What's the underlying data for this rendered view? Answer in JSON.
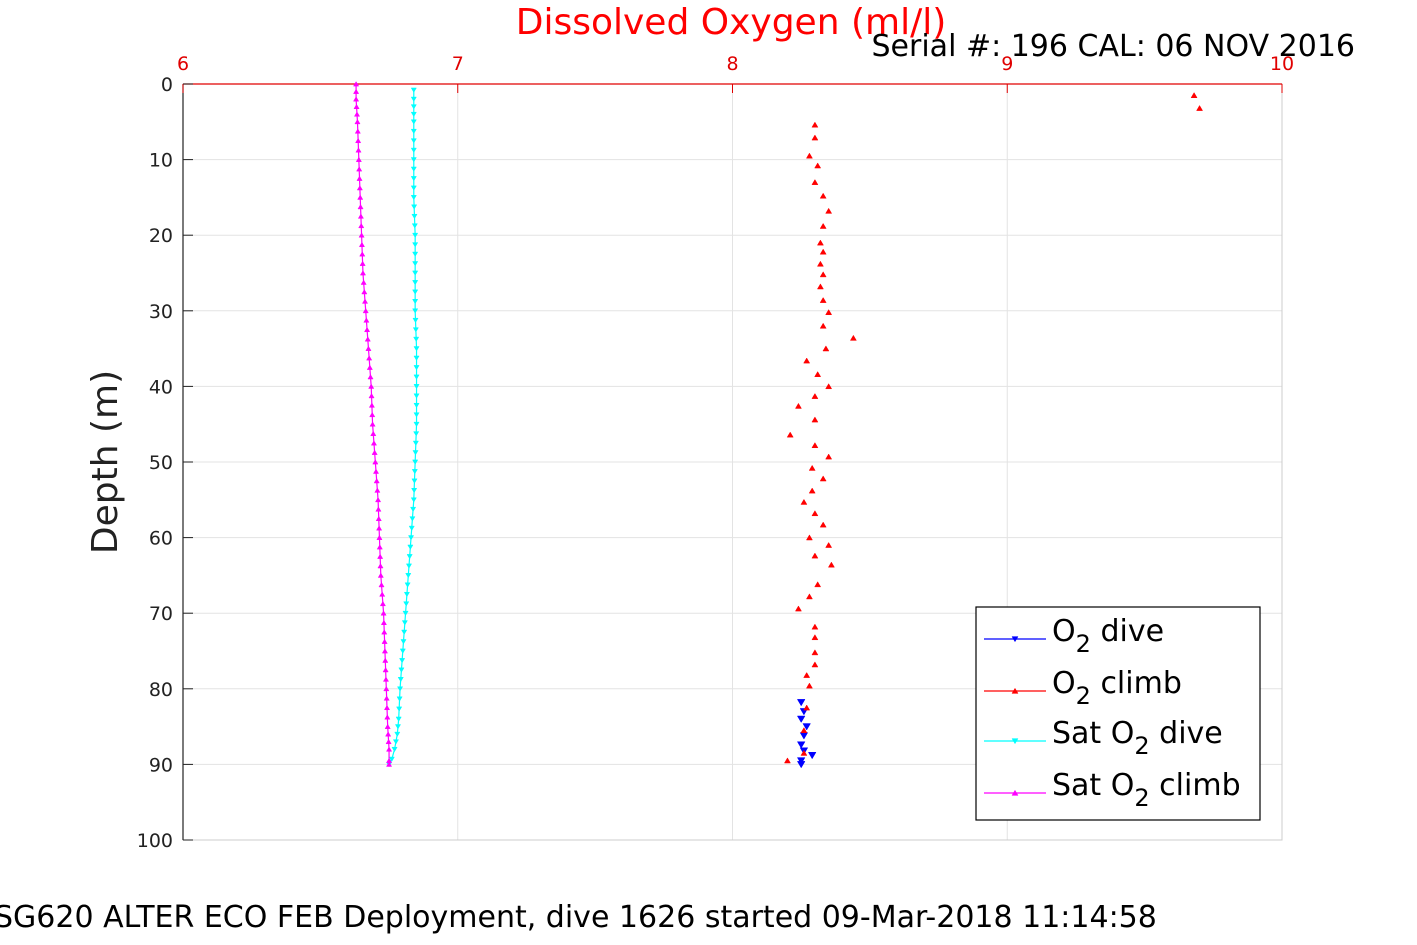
{
  "chart_data": {
    "type": "scatter",
    "title": "Dissolved Oxygen (ml/l)",
    "subtitle": "Serial #: 196  CAL: 06 NOV 2016",
    "caption": "SG620 ALTER ECO FEB Deployment, dive 1626 started 09-Mar-2018 11:14:58",
    "xlabel": "",
    "ylabel": "Depth (m)",
    "xlim": [
      6,
      10
    ],
    "ylim": [
      0,
      100
    ],
    "y_reversed": true,
    "x_axis_position": "top",
    "xticks": [
      "6",
      "7",
      "8",
      "9",
      "10"
    ],
    "yticks": [
      "0",
      "10",
      "20",
      "30",
      "40",
      "50",
      "60",
      "70",
      "80",
      "90",
      "100"
    ],
    "grid": true,
    "legend_position": "bottom-right",
    "legend": [
      {
        "base": "O",
        "sub": "2",
        "rest": " dive",
        "prefix": "",
        "color": "#0000ff",
        "marker": "tri-down"
      },
      {
        "base": "O",
        "sub": "2",
        "rest": " climb",
        "prefix": "",
        "color": "#ff0000",
        "marker": "tri-up"
      },
      {
        "prefix": "Sat ",
        "base": "O",
        "sub": "2",
        "rest": " dive",
        "color": "#00ffff",
        "marker": "tri-down"
      },
      {
        "prefix": "Sat ",
        "base": "O",
        "sub": "2",
        "rest": " climb",
        "color": "#ff00ff",
        "marker": "tri-up"
      }
    ],
    "series": [
      {
        "name": "O2 dive",
        "color": "#0000ff",
        "marker": "tri-down",
        "line": false,
        "points": [
          [
            8.25,
            81.8
          ],
          [
            8.26,
            83.0
          ],
          [
            8.25,
            84.0
          ],
          [
            8.27,
            85.0
          ],
          [
            8.26,
            86.2
          ],
          [
            8.25,
            87.4
          ],
          [
            8.26,
            88.2
          ],
          [
            8.29,
            88.8
          ],
          [
            8.25,
            89.5
          ],
          [
            8.25,
            90.0
          ]
        ]
      },
      {
        "name": "O2 climb",
        "color": "#ff0000",
        "marker": "tri-up",
        "line": false,
        "points": [
          [
            9.68,
            1.5
          ],
          [
            9.7,
            3.2
          ],
          [
            8.3,
            5.4
          ],
          [
            8.3,
            7.1
          ],
          [
            8.28,
            9.5
          ],
          [
            8.31,
            10.8
          ],
          [
            8.3,
            13.0
          ],
          [
            8.33,
            14.8
          ],
          [
            8.35,
            16.8
          ],
          [
            8.33,
            18.8
          ],
          [
            8.32,
            21.0
          ],
          [
            8.33,
            22.2
          ],
          [
            8.32,
            23.8
          ],
          [
            8.33,
            25.2
          ],
          [
            8.32,
            26.8
          ],
          [
            8.33,
            28.6
          ],
          [
            8.35,
            30.2
          ],
          [
            8.33,
            32.0
          ],
          [
            8.44,
            33.6
          ],
          [
            8.34,
            35.0
          ],
          [
            8.27,
            36.6
          ],
          [
            8.31,
            38.4
          ],
          [
            8.35,
            40.0
          ],
          [
            8.3,
            41.3
          ],
          [
            8.24,
            42.6
          ],
          [
            8.3,
            44.4
          ],
          [
            8.21,
            46.4
          ],
          [
            8.3,
            47.8
          ],
          [
            8.35,
            49.3
          ],
          [
            8.29,
            50.8
          ],
          [
            8.33,
            52.2
          ],
          [
            8.29,
            53.8
          ],
          [
            8.26,
            55.3
          ],
          [
            8.3,
            56.8
          ],
          [
            8.33,
            58.3
          ],
          [
            8.28,
            60.0
          ],
          [
            8.35,
            61.0
          ],
          [
            8.3,
            62.4
          ],
          [
            8.36,
            63.6
          ],
          [
            8.31,
            66.2
          ],
          [
            8.28,
            67.8
          ],
          [
            8.24,
            69.4
          ],
          [
            8.3,
            71.8
          ],
          [
            8.3,
            73.2
          ],
          [
            8.3,
            75.2
          ],
          [
            8.3,
            76.8
          ],
          [
            8.27,
            78.2
          ],
          [
            8.28,
            79.6
          ],
          [
            8.27,
            82.5
          ],
          [
            8.26,
            85.5
          ],
          [
            8.26,
            88.5
          ],
          [
            8.2,
            89.5
          ]
        ]
      },
      {
        "name": "Sat O2 dive",
        "color": "#00ffff",
        "marker": "tri-down",
        "line": true,
        "points": [
          [
            6.84,
            0.8
          ],
          [
            6.84,
            2.0
          ],
          [
            6.84,
            5.0
          ],
          [
            6.84,
            10.0
          ],
          [
            6.84,
            15.0
          ],
          [
            6.845,
            20.0
          ],
          [
            6.845,
            25.0
          ],
          [
            6.845,
            30.0
          ],
          [
            6.85,
            35.0
          ],
          [
            6.85,
            40.0
          ],
          [
            6.85,
            45.0
          ],
          [
            6.845,
            50.0
          ],
          [
            6.84,
            55.0
          ],
          [
            6.83,
            60.0
          ],
          [
            6.82,
            65.0
          ],
          [
            6.81,
            70.0
          ],
          [
            6.8,
            75.0
          ],
          [
            6.79,
            80.0
          ],
          [
            6.785,
            84.0
          ],
          [
            6.78,
            86.0
          ],
          [
            6.77,
            88.0
          ],
          [
            6.76,
            89.3
          ],
          [
            6.75,
            90.0
          ]
        ]
      },
      {
        "name": "Sat O2 climb",
        "color": "#ff00ff",
        "marker": "tri-up",
        "line": true,
        "points": [
          [
            6.63,
            0.0
          ],
          [
            6.63,
            2.0
          ],
          [
            6.635,
            5.0
          ],
          [
            6.64,
            10.0
          ],
          [
            6.645,
            15.0
          ],
          [
            6.65,
            20.0
          ],
          [
            6.655,
            25.0
          ],
          [
            6.665,
            30.0
          ],
          [
            6.675,
            35.0
          ],
          [
            6.685,
            40.0
          ],
          [
            6.69,
            45.0
          ],
          [
            6.7,
            50.0
          ],
          [
            6.71,
            55.0
          ],
          [
            6.715,
            60.0
          ],
          [
            6.72,
            65.0
          ],
          [
            6.73,
            70.0
          ],
          [
            6.735,
            75.0
          ],
          [
            6.74,
            80.0
          ],
          [
            6.745,
            85.0
          ],
          [
            6.75,
            88.0
          ],
          [
            6.75,
            89.5
          ],
          [
            6.75,
            90.0
          ]
        ]
      }
    ]
  }
}
